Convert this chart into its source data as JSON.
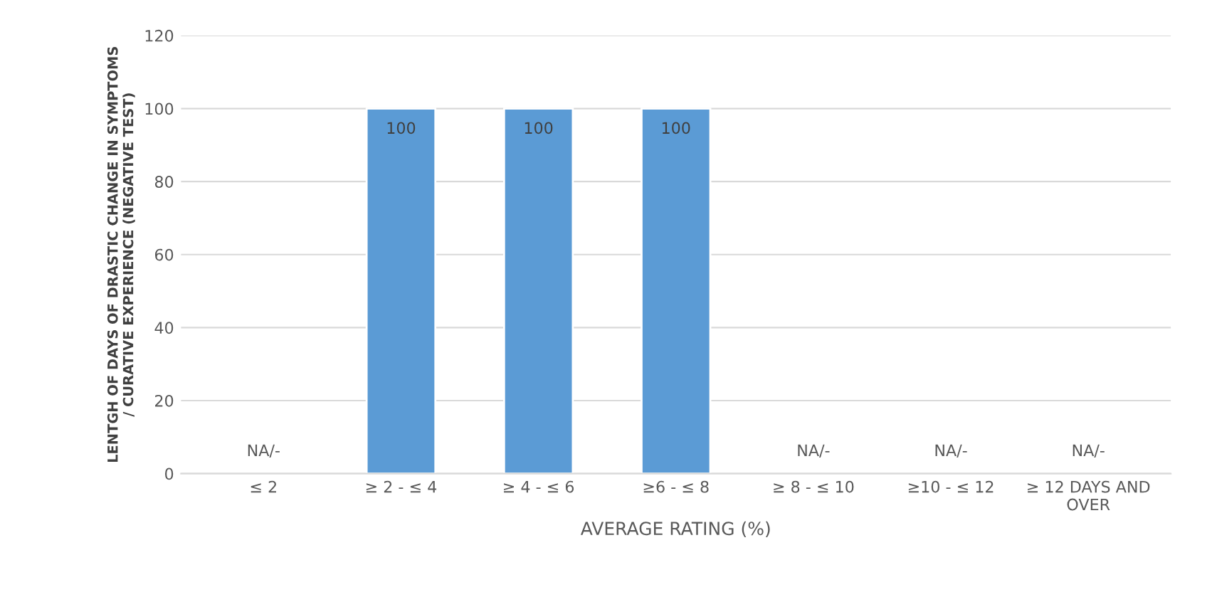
{
  "chart_data": {
    "type": "bar",
    "xlabel": "AVERAGE RATING (%)",
    "ylabel": "LENTGH OF DAYS OF DRASTIC CHANGE IN SYMPTOMS / CURATIVE EXPERIENCE (NEGATIVE TEST)",
    "categories": [
      "≤ 2",
      "≥ 2 - ≤ 4",
      "≥ 4 - ≤ 6",
      "≥6 - ≤ 8",
      "≥ 8 - ≤ 10",
      "≥10 - ≤ 12",
      "≥ 12 DAYS AND OVER"
    ],
    "values": [
      null,
      100,
      100,
      100,
      null,
      null,
      null
    ],
    "value_labels": [
      "NA/-",
      "100",
      "100",
      "100",
      "NA/-",
      "NA/-",
      "NA/-"
    ],
    "color": "#5b9bd5",
    "ylim": [
      0,
      120
    ],
    "yticks": [
      0,
      20,
      40,
      60,
      80,
      100,
      120
    ],
    "grid": "y"
  }
}
